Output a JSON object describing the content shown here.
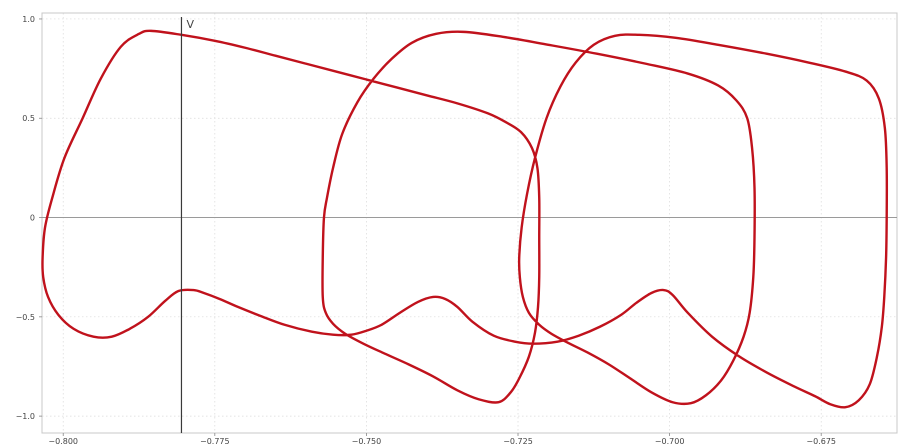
{
  "chart_data": {
    "type": "line",
    "title": "",
    "xlabel": "",
    "ylabel": "",
    "xlim": [
      -0.8035,
      -0.6625
    ],
    "ylim": [
      -1.085,
      1.03
    ],
    "x_ticks": [
      -0.8,
      -0.775,
      -0.75,
      -0.725,
      -0.7,
      -0.675
    ],
    "x_tick_labels": [
      "−0.800",
      "−0.775",
      "−0.750",
      "−0.725",
      "−0.700",
      "−0.675"
    ],
    "y_ticks": [
      1.0,
      0.5,
      0,
      -0.5,
      -1.0
    ],
    "y_tick_labels": [
      "1.0",
      "0.5",
      "0",
      "−0.5",
      "−1.0"
    ],
    "grid": true,
    "series_color": "#c0121c",
    "cursor": {
      "x": -0.7805,
      "label": "V"
    },
    "series": [
      {
        "values": [
          [
            -0.7855,
            0.94
          ],
          [
            -0.7805,
            0.92
          ],
          [
            -0.775,
            0.89
          ],
          [
            -0.77,
            0.855
          ],
          [
            -0.765,
            0.815
          ],
          [
            -0.76,
            0.775
          ],
          [
            -0.755,
            0.735
          ],
          [
            -0.75,
            0.695
          ],
          [
            -0.745,
            0.655
          ],
          [
            -0.74,
            0.615
          ],
          [
            -0.735,
            0.575
          ],
          [
            -0.73,
            0.525
          ],
          [
            -0.727,
            0.48
          ],
          [
            -0.7245,
            0.43
          ],
          [
            -0.7227,
            0.35
          ],
          [
            -0.7218,
            0.25
          ],
          [
            -0.7215,
            0.1
          ],
          [
            -0.7215,
            -0.1
          ],
          [
            -0.7215,
            -0.3
          ],
          [
            -0.7217,
            -0.45
          ],
          [
            -0.7222,
            -0.58
          ],
          [
            -0.7232,
            -0.7
          ],
          [
            -0.7248,
            -0.81
          ],
          [
            -0.7262,
            -0.88
          ],
          [
            -0.7282,
            -0.93
          ],
          [
            -0.7315,
            -0.915
          ],
          [
            -0.735,
            -0.87
          ],
          [
            -0.739,
            -0.8
          ],
          [
            -0.743,
            -0.74
          ],
          [
            -0.747,
            -0.685
          ],
          [
            -0.7505,
            -0.635
          ],
          [
            -0.7535,
            -0.585
          ],
          [
            -0.7555,
            -0.535
          ],
          [
            -0.7567,
            -0.48
          ],
          [
            -0.7572,
            -0.4
          ],
          [
            -0.7572,
            -0.2
          ],
          [
            -0.757,
            0.0
          ],
          [
            -0.7565,
            0.1
          ],
          [
            -0.7555,
            0.25
          ],
          [
            -0.754,
            0.42
          ],
          [
            -0.7515,
            0.58
          ],
          [
            -0.7488,
            0.7
          ],
          [
            -0.7458,
            0.8
          ],
          [
            -0.7425,
            0.88
          ],
          [
            -0.7385,
            0.925
          ],
          [
            -0.734,
            0.935
          ],
          [
            -0.7275,
            0.91
          ],
          [
            -0.72,
            0.87
          ],
          [
            -0.712,
            0.825
          ],
          [
            -0.704,
            0.775
          ],
          [
            -0.697,
            0.725
          ],
          [
            -0.692,
            0.665
          ],
          [
            -0.689,
            0.59
          ],
          [
            -0.6872,
            0.5
          ],
          [
            -0.6864,
            0.35
          ],
          [
            -0.686,
            0.15
          ],
          [
            -0.686,
            -0.1
          ],
          [
            -0.6862,
            -0.3
          ],
          [
            -0.6868,
            -0.48
          ],
          [
            -0.6878,
            -0.6
          ],
          [
            -0.6895,
            -0.72
          ],
          [
            -0.6915,
            -0.82
          ],
          [
            -0.694,
            -0.895
          ],
          [
            -0.6965,
            -0.935
          ],
          [
            -0.6995,
            -0.93
          ],
          [
            -0.703,
            -0.88
          ],
          [
            -0.7065,
            -0.81
          ],
          [
            -0.71,
            -0.74
          ],
          [
            -0.7135,
            -0.68
          ],
          [
            -0.7168,
            -0.63
          ],
          [
            -0.7195,
            -0.585
          ],
          [
            -0.7215,
            -0.54
          ],
          [
            -0.7232,
            -0.48
          ],
          [
            -0.7242,
            -0.4
          ],
          [
            -0.7247,
            -0.3
          ],
          [
            -0.7248,
            -0.2
          ],
          [
            -0.7244,
            -0.05
          ],
          [
            -0.7235,
            0.12
          ],
          [
            -0.7222,
            0.3
          ],
          [
            -0.7203,
            0.5
          ],
          [
            -0.718,
            0.66
          ],
          [
            -0.7155,
            0.78
          ],
          [
            -0.7125,
            0.87
          ],
          [
            -0.709,
            0.915
          ],
          [
            -0.705,
            0.92
          ],
          [
            -0.699,
            0.905
          ],
          [
            -0.692,
            0.87
          ],
          [
            -0.684,
            0.825
          ],
          [
            -0.677,
            0.78
          ],
          [
            -0.671,
            0.735
          ],
          [
            -0.6675,
            0.69
          ],
          [
            -0.6655,
            0.6
          ],
          [
            -0.6645,
            0.45
          ],
          [
            -0.6642,
            0.25
          ],
          [
            -0.6642,
            0.0
          ],
          [
            -0.6643,
            -0.2
          ],
          [
            -0.6646,
            -0.4
          ],
          [
            -0.665,
            -0.55
          ],
          [
            -0.6658,
            -0.7
          ],
          [
            -0.667,
            -0.84
          ],
          [
            -0.6688,
            -0.92
          ],
          [
            -0.671,
            -0.955
          ],
          [
            -0.6735,
            -0.94
          ],
          [
            -0.676,
            -0.9
          ],
          [
            -0.6795,
            -0.85
          ],
          [
            -0.684,
            -0.78
          ],
          [
            -0.6885,
            -0.7
          ],
          [
            -0.693,
            -0.6
          ],
          [
            -0.697,
            -0.48
          ],
          [
            -0.6995,
            -0.39
          ],
          [
            -0.701,
            -0.365
          ],
          [
            -0.703,
            -0.38
          ],
          [
            -0.7055,
            -0.43
          ],
          [
            -0.708,
            -0.49
          ],
          [
            -0.7115,
            -0.55
          ],
          [
            -0.715,
            -0.595
          ],
          [
            -0.7185,
            -0.625
          ],
          [
            -0.7225,
            -0.635
          ],
          [
            -0.7255,
            -0.625
          ],
          [
            -0.729,
            -0.595
          ],
          [
            -0.7325,
            -0.525
          ],
          [
            -0.735,
            -0.45
          ],
          [
            -0.737,
            -0.41
          ],
          [
            -0.739,
            -0.4
          ],
          [
            -0.7415,
            -0.425
          ],
          [
            -0.7445,
            -0.48
          ],
          [
            -0.7475,
            -0.54
          ],
          [
            -0.75,
            -0.57
          ],
          [
            -0.7525,
            -0.59
          ],
          [
            -0.7555,
            -0.59
          ],
          [
            -0.759,
            -0.575
          ],
          [
            -0.7635,
            -0.54
          ],
          [
            -0.7675,
            -0.495
          ],
          [
            -0.7712,
            -0.45
          ],
          [
            -0.7742,
            -0.41
          ],
          [
            -0.7768,
            -0.38
          ],
          [
            -0.7785,
            -0.365
          ],
          [
            -0.781,
            -0.37
          ],
          [
            -0.7832,
            -0.42
          ],
          [
            -0.786,
            -0.5
          ],
          [
            -0.789,
            -0.56
          ],
          [
            -0.792,
            -0.6
          ],
          [
            -0.795,
            -0.6
          ],
          [
            -0.7983,
            -0.56
          ],
          [
            -0.8008,
            -0.49
          ],
          [
            -0.8025,
            -0.4
          ],
          [
            -0.8033,
            -0.3
          ],
          [
            -0.8034,
            -0.2
          ],
          [
            -0.803,
            -0.05
          ],
          [
            -0.8018,
            0.1
          ],
          [
            -0.7998,
            0.3
          ],
          [
            -0.7968,
            0.5
          ],
          [
            -0.7938,
            0.7
          ],
          [
            -0.7905,
            0.86
          ],
          [
            -0.7875,
            0.925
          ],
          [
            -0.7855,
            0.94
          ]
        ]
      }
    ]
  }
}
